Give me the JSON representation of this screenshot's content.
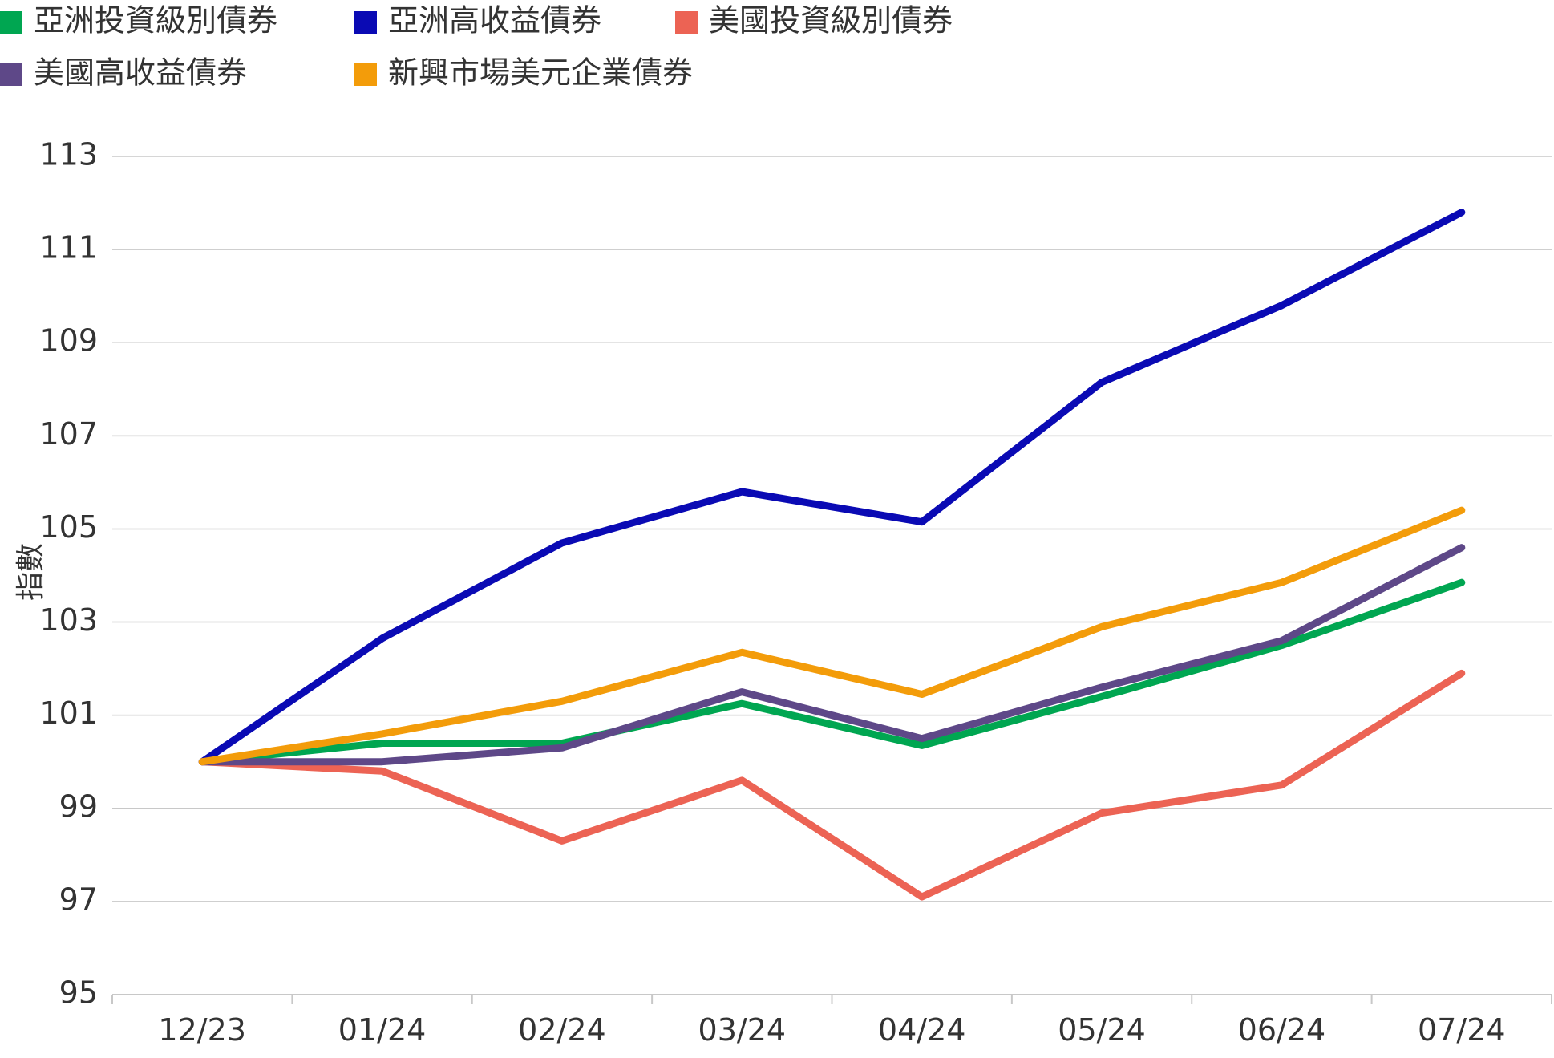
{
  "chart_data": {
    "type": "line",
    "title": "",
    "xlabel": "",
    "ylabel": "指數",
    "categories": [
      "12/23",
      "01/24",
      "02/24",
      "03/24",
      "04/24",
      "05/24",
      "06/24",
      "07/24"
    ],
    "ylim": [
      95,
      113
    ],
    "yticks": [
      95,
      97,
      99,
      101,
      103,
      105,
      107,
      109,
      111,
      113
    ],
    "grid": true,
    "legend_position": "top",
    "series": [
      {
        "name": "亞洲投資級別債券",
        "color": "#00A651",
        "values": [
          100,
          100.4,
          100.4,
          101.25,
          100.35,
          101.4,
          102.5,
          103.85
        ]
      },
      {
        "name": "亞洲高收益債券",
        "color": "#0A0AB4",
        "values": [
          100,
          102.65,
          104.7,
          105.8,
          105.15,
          108.15,
          109.8,
          111.8
        ]
      },
      {
        "name": "美國投資級別債券",
        "color": "#EC6354",
        "values": [
          100,
          99.8,
          98.3,
          99.6,
          97.1,
          98.9,
          99.5,
          101.9
        ]
      },
      {
        "name": "美國高收益債券",
        "color": "#5E4888",
        "values": [
          100,
          100,
          100.3,
          101.5,
          100.5,
          101.6,
          102.6,
          104.6
        ]
      },
      {
        "name": "新興市場美元企業債券",
        "color": "#F39C0A",
        "values": [
          100,
          100.6,
          101.3,
          102.35,
          101.45,
          102.9,
          103.85,
          105.4
        ]
      }
    ]
  }
}
